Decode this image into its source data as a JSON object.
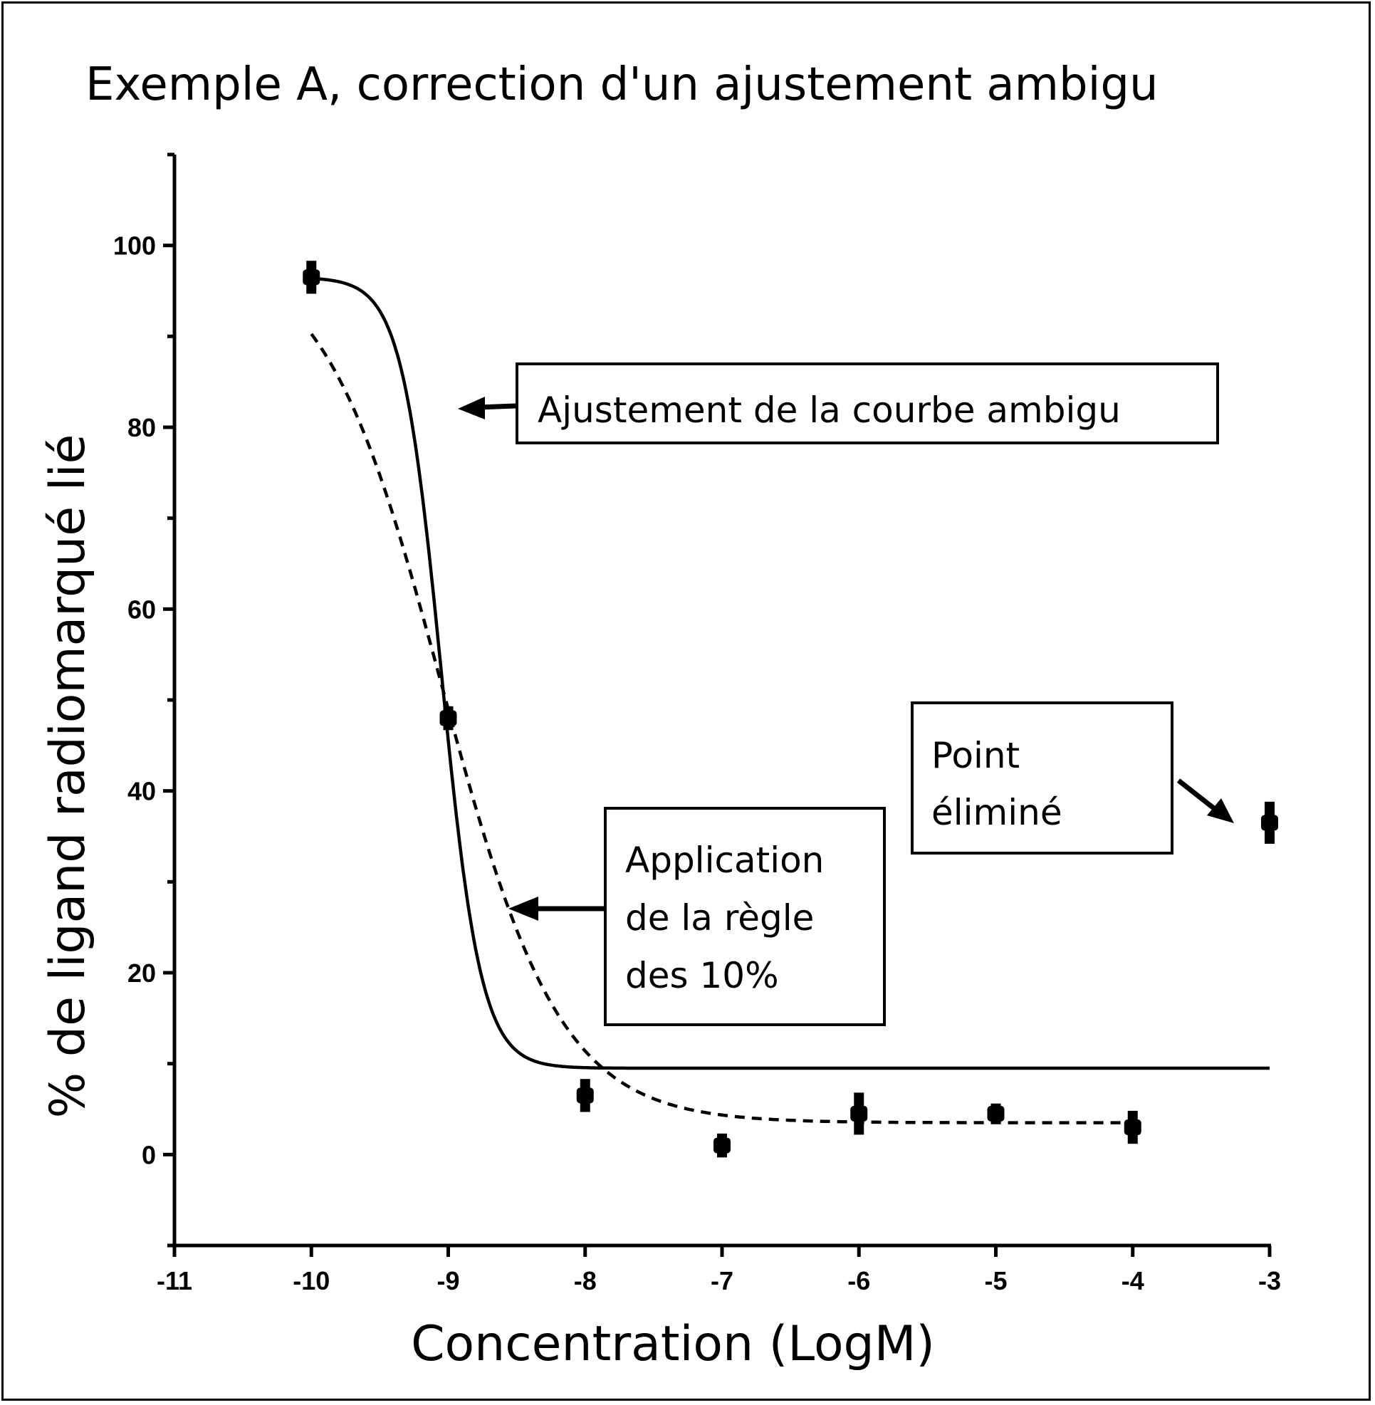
{
  "chart_data": {
    "type": "scatter",
    "title": "Exemple A, correction d'un ajustement ambigu",
    "xlabel": "Concentration (LogM)",
    "ylabel": "% de ligand radiomarqué lié",
    "xlim": [
      -11,
      -3
    ],
    "ylim": [
      -10,
      110
    ],
    "x_ticks": [
      "-11",
      "-10",
      "-9",
      "-8",
      "-7",
      "-6",
      "-5",
      "-4",
      "-3"
    ],
    "y_ticks": [
      "0",
      "20",
      "40",
      "60",
      "80",
      "100"
    ],
    "points": [
      {
        "x": -10,
        "y": 96.5,
        "err": 1.5
      },
      {
        "x": -9,
        "y": 48,
        "err": 1.0
      },
      {
        "x": -8,
        "y": 6.5,
        "err": 1.5
      },
      {
        "x": -7,
        "y": 1,
        "err": 1.0
      },
      {
        "x": -6,
        "y": 4.5,
        "err": 2.0
      },
      {
        "x": -5,
        "y": 4.5,
        "err": 0.8
      },
      {
        "x": -4,
        "y": 3,
        "err": 1.5
      },
      {
        "x": -3,
        "y": 36.5,
        "err": 2.0
      }
    ],
    "curves": [
      {
        "style": "solid",
        "top": 96.5,
        "bottom": 9.5,
        "logEC50": -9.05,
        "hill": -3.0,
        "x_start": -10,
        "x_end": -3
      },
      {
        "style": "dashed",
        "top": 100,
        "bottom": 3.5,
        "logEC50": -9.05,
        "hill": -1.0,
        "x_start": -10,
        "x_end": -4
      }
    ],
    "annotations": [
      {
        "lines": [
          "Ajustement de la courbe ambigu"
        ]
      },
      {
        "lines": [
          "Application",
          "de la règle",
          "des 10%"
        ]
      },
      {
        "lines": [
          "Point",
          "éliminé"
        ]
      }
    ],
    "grid": false,
    "legend": "none"
  }
}
